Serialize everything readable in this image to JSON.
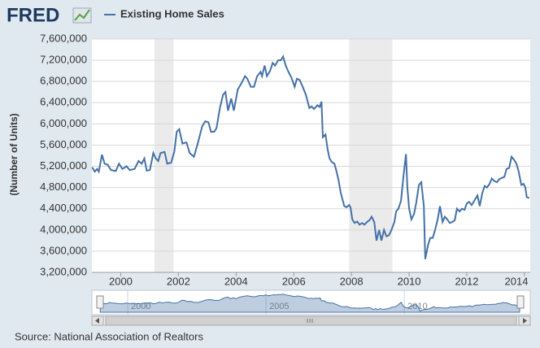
{
  "brand": "FRED",
  "chart_data": {
    "type": "line",
    "title": "Existing Home Sales",
    "ylabel": "(Number of Units)",
    "source": "Source: National Association of Realtors",
    "grid": true,
    "legend": "top-left",
    "xlim": [
      1999,
      2014.2
    ],
    "ylim": [
      3200000,
      7600000
    ],
    "xticks": [
      2000,
      2002,
      2004,
      2006,
      2008,
      2010,
      2012,
      2014
    ],
    "yticks": [
      {
        "value": 3200000,
        "label": "3,200,000"
      },
      {
        "value": 3600000,
        "label": "3,600,000"
      },
      {
        "value": 4000000,
        "label": "4,000,000"
      },
      {
        "value": 4400000,
        "label": "4,400,000"
      },
      {
        "value": 4800000,
        "label": "4,800,000"
      },
      {
        "value": 5200000,
        "label": "5,200,000"
      },
      {
        "value": 5600000,
        "label": "5,600,000"
      },
      {
        "value": 6000000,
        "label": "6,000,000"
      },
      {
        "value": 6400000,
        "label": "6,400,000"
      },
      {
        "value": 6800000,
        "label": "6,800,000"
      },
      {
        "value": 7200000,
        "label": "7,200,000"
      },
      {
        "value": 7600000,
        "label": "7,600,000"
      }
    ],
    "shaded_ranges": [
      [
        2001.17,
        2001.83
      ],
      [
        2007.92,
        2009.42
      ]
    ],
    "shade_color": "#ebebeb",
    "navigator_xticks": [
      2000,
      2005,
      2010
    ],
    "x": [
      1999.01,
      1999.1,
      1999.18,
      1999.24,
      1999.35,
      1999.44,
      1999.55,
      1999.66,
      1999.83,
      1999.94,
      2000.06,
      2000.2,
      2000.31,
      2000.48,
      2000.62,
      2000.73,
      2000.82,
      2000.9,
      2001.01,
      2001.13,
      2001.21,
      2001.3,
      2001.38,
      2001.52,
      2001.61,
      2001.75,
      2001.86,
      2001.94,
      2002.03,
      2002.14,
      2002.28,
      2002.39,
      2002.54,
      2002.68,
      2002.82,
      2002.93,
      2003.04,
      2003.13,
      2003.24,
      2003.32,
      2003.44,
      2003.55,
      2003.63,
      2003.72,
      2003.83,
      2003.92,
      2004.06,
      2004.17,
      2004.31,
      2004.39,
      2004.51,
      2004.62,
      2004.73,
      2004.85,
      2004.9,
      2004.99,
      2005.07,
      2005.18,
      2005.27,
      2005.35,
      2005.46,
      2005.55,
      2005.63,
      2005.72,
      2005.8,
      2005.92,
      2006.03,
      2006.11,
      2006.2,
      2006.31,
      2006.42,
      2006.54,
      2006.62,
      2006.7,
      2006.82,
      2006.9,
      2006.96,
      2007.01,
      2007.1,
      2007.18,
      2007.24,
      2007.32,
      2007.41,
      2007.46,
      2007.55,
      2007.63,
      2007.75,
      2007.83,
      2007.92,
      2007.97,
      2008.03,
      2008.11,
      2008.2,
      2008.28,
      2008.37,
      2008.45,
      2008.54,
      2008.62,
      2008.7,
      2008.79,
      2008.87,
      2008.96,
      2009.04,
      2009.13,
      2009.21,
      2009.3,
      2009.38,
      2009.49,
      2009.55,
      2009.63,
      2009.72,
      2009.8,
      2009.89,
      2009.94,
      2010.0,
      2010.08,
      2010.17,
      2010.25,
      2010.34,
      2010.42,
      2010.51,
      2010.56,
      2010.65,
      2010.73,
      2010.82,
      2010.9,
      2010.99,
      2011.07,
      2011.16,
      2011.24,
      2011.32,
      2011.41,
      2011.49,
      2011.58,
      2011.66,
      2011.75,
      2011.83,
      2011.92,
      2012.0,
      2012.08,
      2012.17,
      2012.28,
      2012.37,
      2012.45,
      2012.54,
      2012.62,
      2012.7,
      2012.79,
      2012.87,
      2012.96,
      2013.04,
      2013.13,
      2013.21,
      2013.3,
      2013.38,
      2013.47,
      2013.55,
      2013.63,
      2013.72,
      2013.8,
      2013.89,
      2013.97,
      2014.03,
      2014.08,
      2014.17
    ],
    "series": [
      {
        "name": "Existing Home Sales",
        "color": "#4572a7",
        "values": [
          5180000,
          5100000,
          5150000,
          5100000,
          5420000,
          5250000,
          5230000,
          5130000,
          5110000,
          5250000,
          5150000,
          5200000,
          5130000,
          5150000,
          5300000,
          5250000,
          5350000,
          5120000,
          5130000,
          5450000,
          5350000,
          5300000,
          5450000,
          5470000,
          5250000,
          5270000,
          5480000,
          5850000,
          5900000,
          5630000,
          5650000,
          5450000,
          5380000,
          5650000,
          5950000,
          6050000,
          6030000,
          5850000,
          5850000,
          5920000,
          6300000,
          6550000,
          6600000,
          6250000,
          6480000,
          6250000,
          6650000,
          6750000,
          6900000,
          6850000,
          6700000,
          6700000,
          6900000,
          6980000,
          6900000,
          7100000,
          6900000,
          7000000,
          7150000,
          7100000,
          7200000,
          7200000,
          7270000,
          7100000,
          7000000,
          6870000,
          6700000,
          6850000,
          6830000,
          6700000,
          6550000,
          6300000,
          6330000,
          6280000,
          6350000,
          6320000,
          6420000,
          5750000,
          5800000,
          5500000,
          5350000,
          5280000,
          5250000,
          5150000,
          4950000,
          4700000,
          4450000,
          4430000,
          4470000,
          4420000,
          4200000,
          4130000,
          4160000,
          4100000,
          4130000,
          4100000,
          4150000,
          4180000,
          4250000,
          4150000,
          3800000,
          4000000,
          3800000,
          4000000,
          3880000,
          3900000,
          3990000,
          4150000,
          4350000,
          4400000,
          4550000,
          5000000,
          5430000,
          4800000,
          4400000,
          4200000,
          4300000,
          4520000,
          4850000,
          4900000,
          4450000,
          3450000,
          3700000,
          3850000,
          3850000,
          4000000,
          4200000,
          4450000,
          4150000,
          4250000,
          4200000,
          4130000,
          4150000,
          4180000,
          4400000,
          4350000,
          4400000,
          4380000,
          4500000,
          4530000,
          4470000,
          4570000,
          4650000,
          4450000,
          4700000,
          4830000,
          4800000,
          4870000,
          4970000,
          4920000,
          4900000,
          4960000,
          4980000,
          5000000,
          5150000,
          5170000,
          5380000,
          5330000,
          5250000,
          5100000,
          4850000,
          4870000,
          4800000,
          4620000,
          4600000
        ]
      }
    ]
  }
}
